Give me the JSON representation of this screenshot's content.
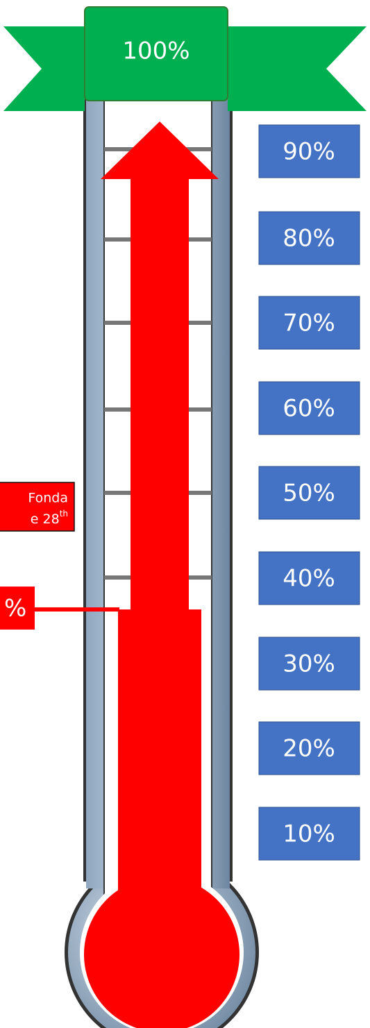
{
  "banner": {
    "label": "100%"
  },
  "scale": {
    "labels": [
      "90%",
      "80%",
      "70%",
      "60%",
      "50%",
      "40%",
      "30%",
      "20%",
      "10%"
    ]
  },
  "annotation": {
    "line1": "Fonda",
    "line2": "e 28",
    "line2_superscript": "th"
  },
  "current": {
    "label": "%"
  }
}
